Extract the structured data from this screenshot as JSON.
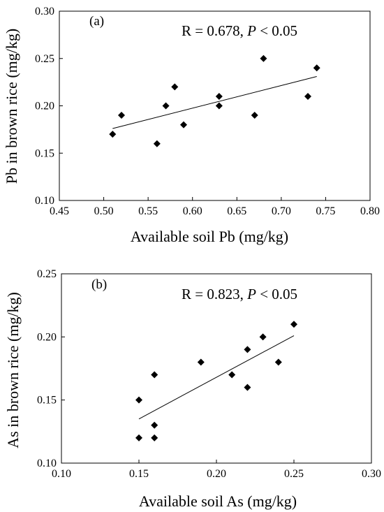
{
  "chart_data": [
    {
      "type": "scatter",
      "panel_label": "(a)",
      "annotation": {
        "prefix": "R = 0.678, ",
        "p_symbol": "P",
        "suffix": " < 0.05"
      },
      "xlabel": "Available soil Pb (mg/kg)",
      "ylabel": "Pb in brown rice (mg/kg)",
      "xlim": [
        0.45,
        0.8
      ],
      "ylim": [
        0.1,
        0.3
      ],
      "xticks": [
        "0.45",
        "0.50",
        "0.55",
        "0.60",
        "0.65",
        "0.70",
        "0.75",
        "0.80"
      ],
      "yticks": [
        "0.10",
        "0.15",
        "0.20",
        "0.25",
        "0.30"
      ],
      "points": [
        {
          "x": 0.51,
          "y": 0.17
        },
        {
          "x": 0.52,
          "y": 0.19
        },
        {
          "x": 0.56,
          "y": 0.16
        },
        {
          "x": 0.57,
          "y": 0.2
        },
        {
          "x": 0.58,
          "y": 0.22
        },
        {
          "x": 0.59,
          "y": 0.18
        },
        {
          "x": 0.63,
          "y": 0.21
        },
        {
          "x": 0.63,
          "y": 0.2
        },
        {
          "x": 0.67,
          "y": 0.19
        },
        {
          "x": 0.68,
          "y": 0.25
        },
        {
          "x": 0.73,
          "y": 0.21
        },
        {
          "x": 0.74,
          "y": 0.24
        }
      ],
      "fit_line": {
        "x": [
          0.51,
          0.74
        ],
        "y": [
          0.176,
          0.231
        ]
      },
      "grid": false,
      "marker": "diamond"
    },
    {
      "type": "scatter",
      "panel_label": "(b)",
      "annotation": {
        "prefix": "R = 0.823, ",
        "p_symbol": "P",
        "suffix": " < 0.05"
      },
      "xlabel": "Available soil As (mg/kg)",
      "ylabel": "As in brown rice (mg/kg)",
      "xlim": [
        0.1,
        0.3
      ],
      "ylim": [
        0.1,
        0.25
      ],
      "xticks": [
        "0.10",
        "0.15",
        "0.20",
        "0.25",
        "0.30"
      ],
      "yticks": [
        "0.10",
        "0.15",
        "0.20",
        "0.25"
      ],
      "points": [
        {
          "x": 0.15,
          "y": 0.15
        },
        {
          "x": 0.15,
          "y": 0.12
        },
        {
          "x": 0.16,
          "y": 0.17
        },
        {
          "x": 0.16,
          "y": 0.13
        },
        {
          "x": 0.16,
          "y": 0.12
        },
        {
          "x": 0.19,
          "y": 0.18
        },
        {
          "x": 0.21,
          "y": 0.17
        },
        {
          "x": 0.22,
          "y": 0.19
        },
        {
          "x": 0.22,
          "y": 0.16
        },
        {
          "x": 0.23,
          "y": 0.2
        },
        {
          "x": 0.24,
          "y": 0.18
        },
        {
          "x": 0.25,
          "y": 0.21
        }
      ],
      "fit_line": {
        "x": [
          0.15,
          0.25
        ],
        "y": [
          0.135,
          0.201
        ]
      },
      "grid": false,
      "marker": "diamond"
    }
  ]
}
